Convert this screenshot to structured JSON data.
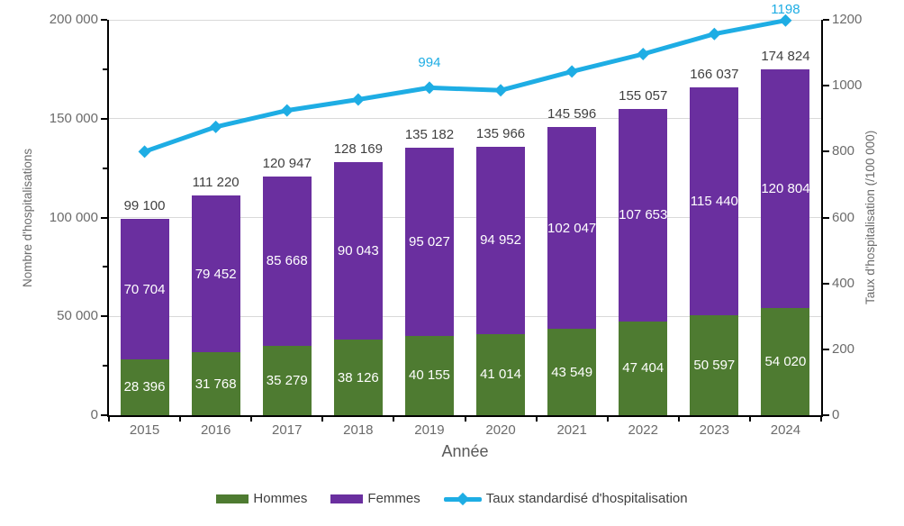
{
  "chart_data": {
    "type": "combo_stacked_bar_line",
    "categories": [
      "2015",
      "2016",
      "2017",
      "2018",
      "2019",
      "2020",
      "2021",
      "2022",
      "2023",
      "2024"
    ],
    "xlabel": "Année",
    "left_axis": {
      "label": "Nombre d'hospitalisations",
      "min": 0,
      "max": 200000,
      "tick_step": 50000,
      "minor_tick_step": 25000,
      "tick_labels": [
        "0",
        "50 000",
        "100 000",
        "150 000",
        "200 000"
      ]
    },
    "right_axis": {
      "label": "Taux d'hospitalisation (/100 000)",
      "min": 0,
      "max": 1200,
      "tick_step": 200,
      "tick_labels": [
        "0",
        "200",
        "400",
        "600",
        "800",
        "1000",
        "1200"
      ]
    },
    "series": [
      {
        "name": "Hommes",
        "type": "bar",
        "stacked": true,
        "color": "#4E7B31",
        "values": [
          28396,
          31768,
          35279,
          38126,
          40155,
          41014,
          43549,
          47404,
          50597,
          54020
        ]
      },
      {
        "name": "Femmes",
        "type": "bar",
        "stacked": true,
        "color": "#6A2F9F",
        "values": [
          70704,
          79452,
          85668,
          90043,
          95027,
          94952,
          102047,
          107653,
          115440,
          120804
        ]
      },
      {
        "name": "Taux standardisé d'hospitalisation",
        "type": "line",
        "axis": "right",
        "color": "#1EADE4",
        "values": [
          800,
          875,
          925,
          958,
          994,
          986,
          1043,
          1096,
          1157,
          1198
        ],
        "values_note": "only 2019 (994) and 2024 (1198) are labeled on the chart; other values estimated from line position",
        "point_labels": [
          "",
          "",
          "",
          "",
          "994",
          "",
          "",
          "",
          "",
          "1198"
        ]
      }
    ],
    "totals": [
      99100,
      111220,
      120947,
      128169,
      135182,
      135966,
      145596,
      155057,
      166037,
      174824
    ],
    "grid": "horizontal",
    "legend_position": "bottom"
  },
  "colors": {
    "background": "#FFFFFF",
    "gridline": "#D9D9D9",
    "axis_line": "#000000",
    "tick_label": "#6B6B6B",
    "axis_title": "#6B6B6B",
    "total_label": "#404040",
    "bar_value_label": "#FFFFFF",
    "hommes": "#4E7B31",
    "femmes": "#6A2F9F",
    "taux_line": "#1EADE4"
  }
}
